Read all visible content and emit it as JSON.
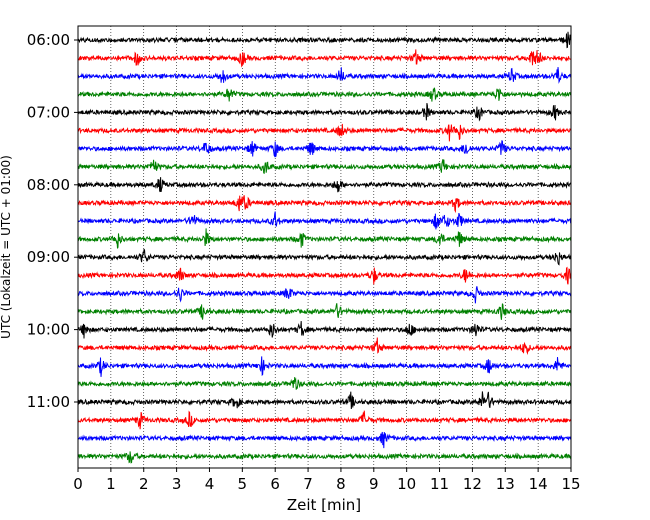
{
  "chart_data": {
    "type": "line",
    "title": "",
    "xlabel": "Zeit  [min]",
    "ylabel": "UTC (Lokalzeit = UTC + 01:00)",
    "xlim": [
      0,
      15
    ],
    "x_ticks": [
      "0",
      "1",
      "2",
      "3",
      "4",
      "5",
      "6",
      "7",
      "8",
      "9",
      "10",
      "11",
      "12",
      "13",
      "14",
      "15"
    ],
    "y_tick_labels": [
      "06:00",
      "07:00",
      "08:00",
      "09:00",
      "10:00",
      "11:00"
    ],
    "grid": "vertical-dotted",
    "colors": [
      "#000000",
      "#ff0000",
      "#0000ff",
      "#008000"
    ],
    "traces_start": "06:00",
    "trace_interval_min": 15,
    "events": [
      {
        "row": 0,
        "x": [
          14.9
        ]
      },
      {
        "row": 1,
        "x": [
          1.8,
          5.0,
          10.3,
          13.8,
          14.0
        ]
      },
      {
        "row": 2,
        "x": [
          4.4,
          8.0,
          13.2,
          14.6
        ]
      },
      {
        "row": 3,
        "x": [
          4.6,
          10.8,
          12.8
        ]
      },
      {
        "row": 4,
        "x": [
          10.6,
          12.2,
          14.5
        ]
      },
      {
        "row": 5,
        "x": [
          8.0,
          11.3,
          11.6
        ]
      },
      {
        "row": 6,
        "x": [
          3.9,
          5.3,
          6.0,
          7.1,
          11.8,
          12.9
        ]
      },
      {
        "row": 7,
        "x": [
          2.3,
          5.7,
          11.1
        ]
      },
      {
        "row": 8,
        "x": [
          2.5,
          7.9
        ]
      },
      {
        "row": 9,
        "x": [
          4.9,
          5.1,
          11.5
        ]
      },
      {
        "row": 10,
        "x": [
          3.5,
          6.0,
          10.9,
          11.2,
          11.6
        ]
      },
      {
        "row": 11,
        "x": [
          1.2,
          3.9,
          6.8,
          11.0,
          11.6
        ]
      },
      {
        "row": 12,
        "x": [
          2.0,
          14.6
        ]
      },
      {
        "row": 13,
        "x": [
          3.1,
          9.0,
          11.8,
          14.9
        ]
      },
      {
        "row": 14,
        "x": [
          3.1,
          6.4,
          12.1
        ]
      },
      {
        "row": 15,
        "x": [
          3.8,
          7.9,
          12.9
        ]
      },
      {
        "row": 16,
        "x": [
          0.2,
          5.9,
          6.8,
          10.1,
          12.1
        ]
      },
      {
        "row": 17,
        "x": [
          9.1,
          13.6
        ]
      },
      {
        "row": 18,
        "x": [
          0.7,
          5.6,
          12.5,
          14.6
        ]
      },
      {
        "row": 19,
        "x": [
          6.6
        ]
      },
      {
        "row": 20,
        "x": [
          4.8,
          8.3,
          12.3,
          12.5
        ]
      },
      {
        "row": 21,
        "x": [
          1.9,
          3.4,
          8.7
        ]
      },
      {
        "row": 22,
        "x": [
          9.3
        ]
      },
      {
        "row": 23,
        "x": [
          1.6
        ]
      }
    ]
  }
}
